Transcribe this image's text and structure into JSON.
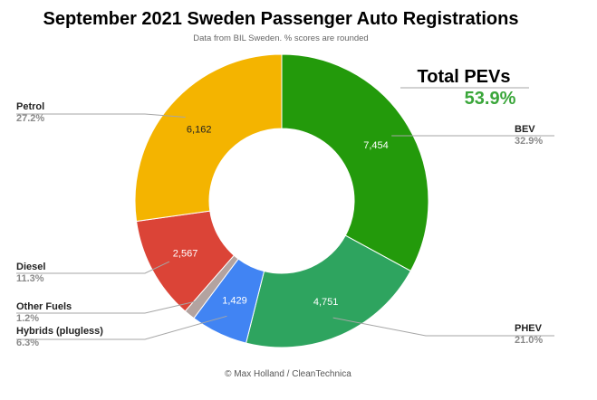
{
  "chart_data": {
    "type": "pie",
    "title": "September 2021 Sweden Passenger Auto Registrations",
    "subtitle": "Data from BIL Sweden. % scores are rounded",
    "annotation": {
      "label": "Total PEVs",
      "value": "53.9%"
    },
    "footer": "© Max Holland / CleanTechnica",
    "donut": true,
    "slices": [
      {
        "name": "BEV",
        "value": 7454,
        "value_label": "7,454",
        "percent": "32.9%",
        "color": "#239a0b",
        "label_color": "#ffffff"
      },
      {
        "name": "PHEV",
        "value": 4751,
        "value_label": "4,751",
        "percent": "21.0%",
        "color": "#2ea45f",
        "label_color": "#ffffff"
      },
      {
        "name": "Hybrids (plugless)",
        "value": 1429,
        "value_label": "1,429",
        "percent": "6.3%",
        "color": "#4184f3",
        "label_color": "#ffffff"
      },
      {
        "name": "Other Fuels",
        "value": 276,
        "value_label": "",
        "percent": "1.2%",
        "color": "#b3a3a0",
        "label_color": "#ffffff"
      },
      {
        "name": "Diesel",
        "value": 2567,
        "value_label": "2,567",
        "percent": "11.3%",
        "color": "#db4437",
        "label_color": "#ffffff"
      },
      {
        "name": "Petrol",
        "value": 6162,
        "value_label": "6,162",
        "percent": "27.2%",
        "color": "#f4b400",
        "label_color": "#222222"
      }
    ]
  },
  "colors": {
    "total_value": "#3aa63a"
  }
}
